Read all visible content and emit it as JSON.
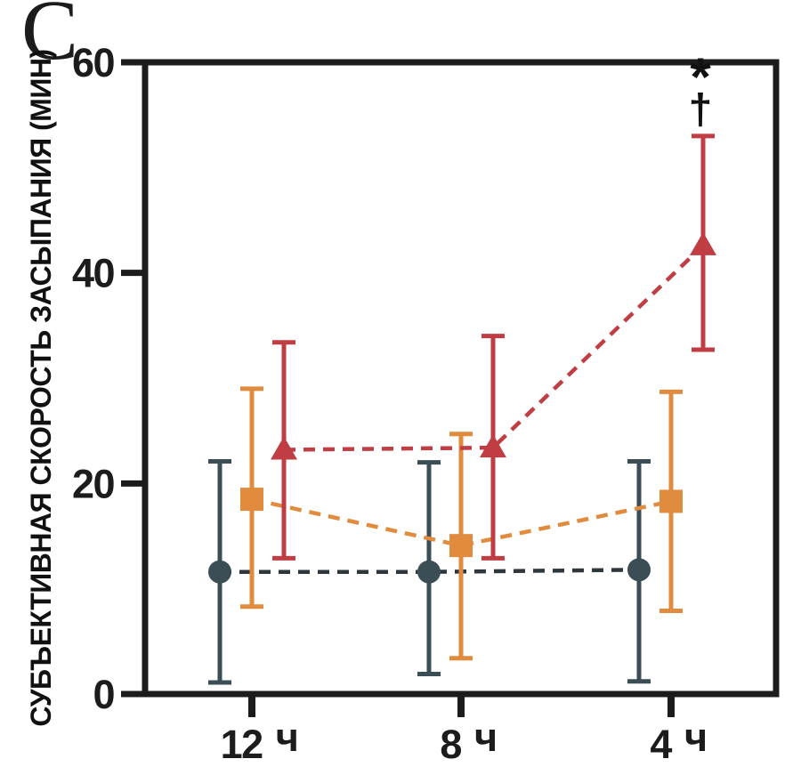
{
  "panel": {
    "label": "C"
  },
  "annotations": {
    "star": "*",
    "dagger": "†"
  },
  "chart_data": {
    "type": "scatter",
    "title": "",
    "xlabel": "",
    "ylabel": "СУБЪЕКТИВНАЯ СКОРОСТЬ ЗАСЫПАНИЯ (МИН)",
    "categories": [
      "12 ч",
      "8 ч",
      "4 ч"
    ],
    "yticks": [
      0,
      20,
      40,
      60
    ],
    "ylim": [
      0,
      60
    ],
    "grid": false,
    "legend": "none",
    "axis_color": "#1c1c1c",
    "series": [
      {
        "name": "circles",
        "marker": "circle",
        "color": "#3b4d55",
        "line_color": "#2e373b",
        "values": [
          11.6,
          11.6,
          11.8
        ],
        "err_low": [
          1.1,
          1.9,
          1.2
        ],
        "err_high": [
          22.1,
          22.0,
          22.1
        ]
      },
      {
        "name": "squares",
        "marker": "square",
        "color": "#e08b3e",
        "line_color": "#e08b3e",
        "values": [
          18.5,
          14.1,
          18.3
        ],
        "err_low": [
          8.3,
          3.4,
          7.9
        ],
        "err_high": [
          29.0,
          24.7,
          28.7
        ]
      },
      {
        "name": "triangles",
        "marker": "triangle",
        "color": "#c03d44",
        "line_color": "#c03d44",
        "values": [
          23.2,
          23.4,
          42.6
        ],
        "err_low": [
          12.9,
          12.9,
          32.7
        ],
        "err_high": [
          33.4,
          34.0,
          53.0
        ]
      }
    ],
    "annotation": {
      "text": "* †",
      "at_category": "4 ч",
      "at_series": "triangles"
    }
  }
}
